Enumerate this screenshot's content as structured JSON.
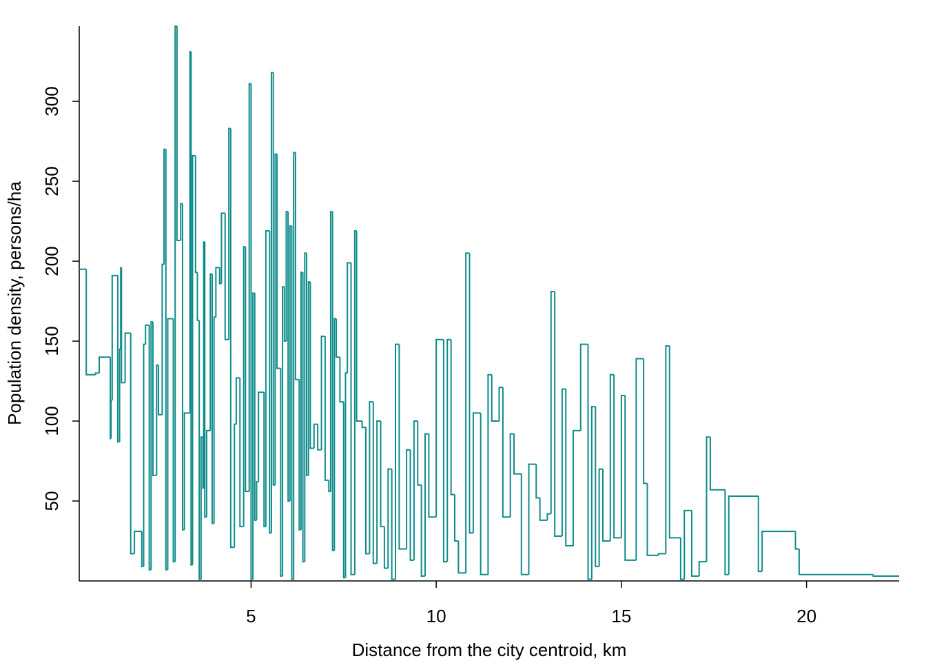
{
  "chart_data": {
    "type": "step",
    "xlabel": "Distance from the city centroid, km",
    "ylabel": "Population density, persons/ha",
    "color": "#0e8b8b",
    "xlim": [
      0.36,
      22.5
    ],
    "ylim": [
      0,
      347
    ],
    "xticks": [
      5,
      10,
      15,
      20
    ],
    "yticks": [
      50,
      100,
      150,
      200,
      250,
      300
    ],
    "x": [
      0.36,
      0.55,
      0.8,
      0.9,
      1.2,
      1.22,
      1.25,
      1.4,
      1.45,
      1.48,
      1.5,
      1.6,
      1.75,
      1.85,
      2.05,
      2.1,
      2.15,
      2.25,
      2.3,
      2.35,
      2.45,
      2.5,
      2.6,
      2.65,
      2.7,
      2.75,
      2.9,
      2.95,
      3.0,
      3.1,
      3.15,
      3.2,
      3.35,
      3.38,
      3.42,
      3.5,
      3.55,
      3.6,
      3.65,
      3.7,
      3.72,
      3.75,
      3.8,
      3.9,
      3.95,
      4.0,
      4.05,
      4.15,
      4.2,
      4.3,
      4.4,
      4.45,
      4.55,
      4.6,
      4.7,
      4.8,
      4.85,
      4.95,
      5.0,
      5.05,
      5.1,
      5.15,
      5.2,
      5.35,
      5.4,
      5.5,
      5.55,
      5.6,
      5.65,
      5.7,
      5.8,
      5.85,
      5.9,
      5.95,
      6.0,
      6.05,
      6.1,
      6.15,
      6.2,
      6.3,
      6.35,
      6.4,
      6.45,
      6.5,
      6.55,
      6.6,
      6.7,
      6.8,
      6.9,
      7.0,
      7.1,
      7.15,
      7.2,
      7.25,
      7.3,
      7.4,
      7.5,
      7.55,
      7.6,
      7.7,
      7.8,
      7.85,
      8.0,
      8.1,
      8.2,
      8.3,
      8.4,
      8.5,
      8.6,
      8.7,
      8.8,
      8.9,
      9.0,
      9.2,
      9.3,
      9.4,
      9.5,
      9.6,
      9.7,
      9.8,
      10.0,
      10.2,
      10.3,
      10.4,
      10.5,
      10.6,
      10.8,
      10.9,
      11.0,
      11.2,
      11.4,
      11.5,
      11.7,
      11.8,
      12.0,
      12.1,
      12.3,
      12.5,
      12.7,
      12.8,
      13.0,
      13.1,
      13.2,
      13.4,
      13.5,
      13.7,
      13.9,
      14.1,
      14.2,
      14.3,
      14.4,
      14.5,
      14.7,
      14.8,
      15.0,
      15.1,
      15.4,
      15.6,
      15.7,
      16.0,
      16.2,
      16.3,
      16.6,
      16.7,
      16.9,
      17.1,
      17.3,
      17.4,
      17.8,
      17.9,
      18.7,
      18.8,
      19.7,
      19.8,
      21.6,
      21.8
    ],
    "values": [
      195,
      129,
      130,
      140,
      89,
      113,
      191,
      87,
      145,
      196,
      124,
      155,
      17,
      31,
      9,
      148,
      160,
      7,
      162,
      66,
      135,
      104,
      198,
      270,
      7,
      164,
      12,
      347,
      213,
      236,
      32,
      105,
      331,
      10,
      266,
      193,
      163,
      1,
      90,
      58,
      212,
      40,
      94,
      192,
      36,
      165,
      196,
      186,
      230,
      151,
      283,
      21,
      98,
      127,
      34,
      209,
      56,
      311,
      1,
      180,
      38,
      62,
      118,
      34,
      219,
      30,
      318,
      60,
      267,
      133,
      3,
      184,
      150,
      231,
      50,
      222,
      1,
      268,
      126,
      32,
      193,
      12,
      205,
      66,
      187,
      83,
      98,
      82,
      153,
      63,
      56,
      231,
      19,
      164,
      140,
      112,
      2,
      130,
      199,
      4,
      219,
      100,
      96,
      17,
      112,
      11,
      100,
      34,
      8,
      70,
      1,
      148,
      20,
      82,
      13,
      100,
      60,
      3,
      92,
      40,
      151,
      12,
      151,
      54,
      25,
      5,
      205,
      30,
      105,
      4,
      129,
      100,
      121,
      40,
      92,
      67,
      4,
      73,
      52,
      38,
      42,
      181,
      28,
      120,
      22,
      94,
      148,
      1,
      109,
      9,
      70,
      25,
      129,
      27,
      116,
      13,
      139,
      61,
      16,
      17,
      147,
      27,
      1,
      44,
      3,
      12,
      90,
      57,
      4,
      53,
      6,
      31,
      20,
      4,
      4,
      3
    ]
  }
}
